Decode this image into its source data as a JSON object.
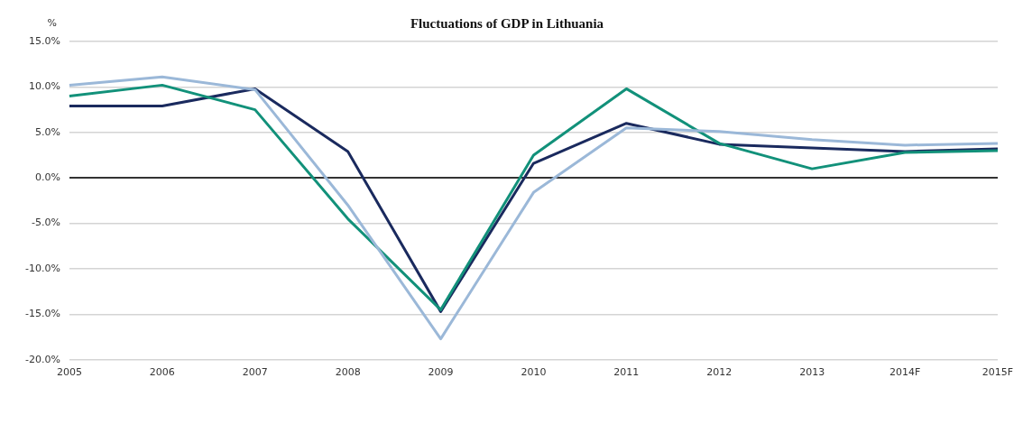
{
  "chart_data": {
    "type": "line",
    "title": "Fluctuations of GDP in Lithuania",
    "ylabel": "%",
    "categories": [
      "2005",
      "2006",
      "2007",
      "2008",
      "2009",
      "2010",
      "2011",
      "2012",
      "2013",
      "2014F",
      "2015F"
    ],
    "series": [
      {
        "color": "#9bb8d8",
        "values": [
          10.2,
          11.1,
          9.7,
          -3.0,
          -17.7,
          -1.6,
          5.5,
          5.1,
          4.2,
          3.6,
          3.8
        ]
      },
      {
        "color": "#12917a",
        "values": [
          9.0,
          10.2,
          7.5,
          -4.5,
          -14.5,
          2.5,
          9.8,
          3.8,
          1.0,
          2.8,
          3.0
        ]
      },
      {
        "color": "#1a2a5e",
        "values": [
          7.9,
          7.9,
          9.8,
          2.9,
          -14.7,
          1.6,
          6.0,
          3.7,
          3.3,
          2.9,
          3.2
        ]
      }
    ],
    "ylim": [
      -20,
      15
    ],
    "yticks": [
      {
        "value": -20,
        "label": "-20.0%"
      },
      {
        "value": -15,
        "label": "-15.0%"
      },
      {
        "value": -10,
        "label": "-10.0%"
      },
      {
        "value": -5,
        "label": "-5.0%"
      },
      {
        "value": 0,
        "label": "0.0%"
      },
      {
        "value": 5,
        "label": "5.0%"
      },
      {
        "value": 10,
        "label": "10.0%"
      },
      {
        "value": 15,
        "label": "15.0%"
      }
    ],
    "grid": "y",
    "legend": false,
    "marker": "none",
    "line_style": "solid"
  }
}
